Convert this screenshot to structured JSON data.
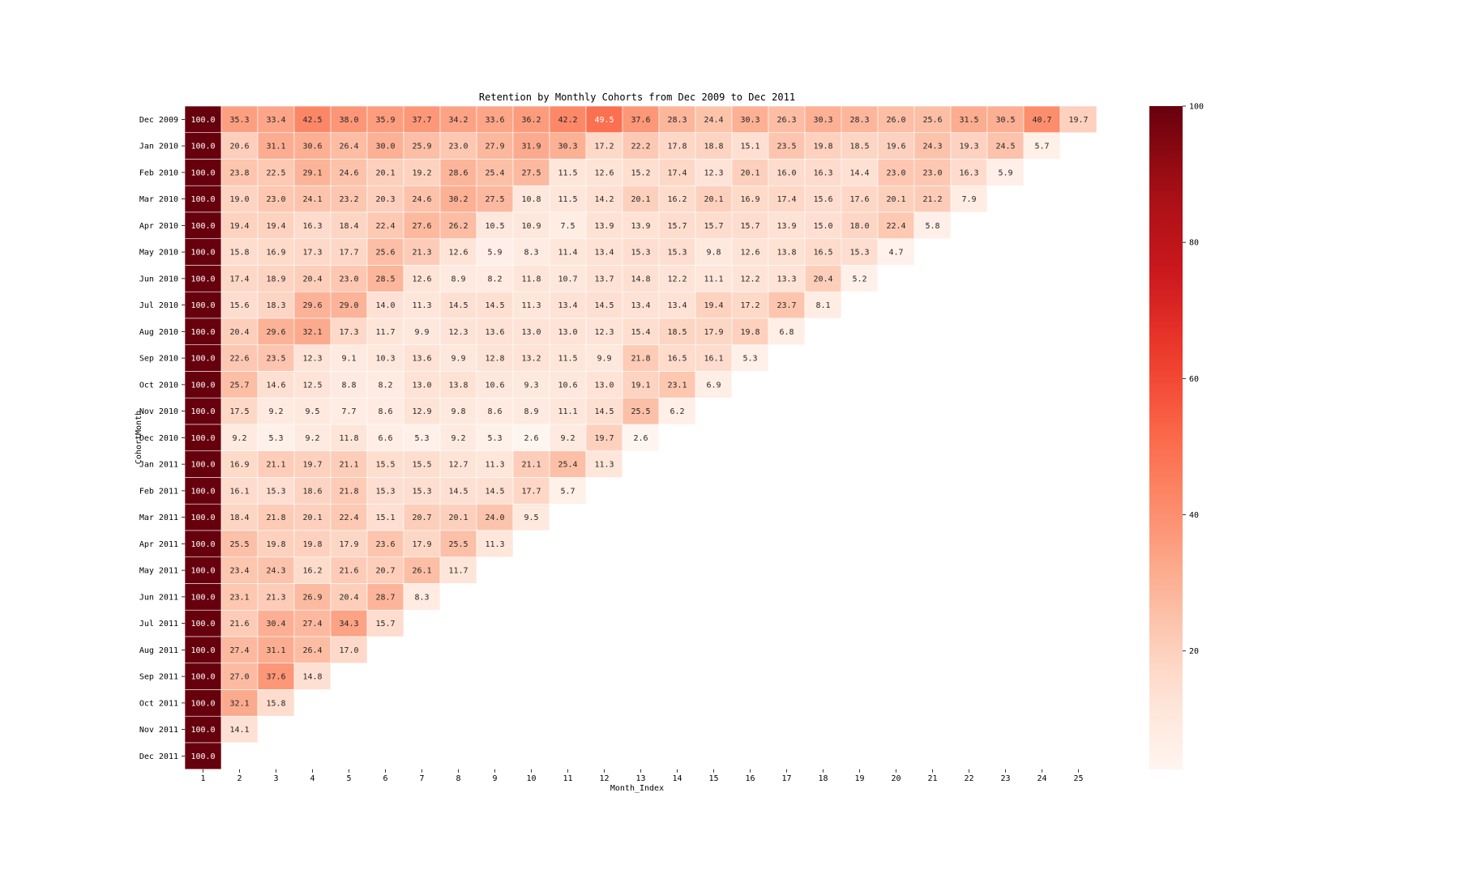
{
  "chart_data": {
    "type": "heatmap",
    "title": "Retention by Monthly Cohorts from Dec 2009 to Dec 2011",
    "xlabel": "Month_Index",
    "ylabel": "CohortMonth",
    "x": [
      1,
      2,
      3,
      4,
      5,
      6,
      7,
      8,
      9,
      10,
      11,
      12,
      13,
      14,
      15,
      16,
      17,
      18,
      19,
      20,
      21,
      22,
      23,
      24,
      25
    ],
    "y": [
      "Dec 2009",
      "Jan 2010",
      "Feb 2010",
      "Mar 2010",
      "Apr 2010",
      "May 2010",
      "Jun 2010",
      "Jul 2010",
      "Aug 2010",
      "Sep 2010",
      "Oct 2010",
      "Nov 2010",
      "Dec 2010",
      "Jan 2011",
      "Feb 2011",
      "Mar 2011",
      "Apr 2011",
      "May 2011",
      "Jun 2011",
      "Jul 2011",
      "Aug 2011",
      "Sep 2011",
      "Oct 2011",
      "Nov 2011",
      "Dec 2011"
    ],
    "values": [
      [
        100.0,
        35.3,
        33.4,
        42.5,
        38.0,
        35.9,
        37.7,
        34.2,
        33.6,
        36.2,
        42.2,
        49.5,
        37.6,
        28.3,
        24.4,
        30.3,
        26.3,
        30.3,
        28.3,
        26.0,
        25.6,
        31.5,
        30.5,
        40.7,
        19.7
      ],
      [
        100.0,
        20.6,
        31.1,
        30.6,
        26.4,
        30.0,
        25.9,
        23.0,
        27.9,
        31.9,
        30.3,
        17.2,
        22.2,
        17.8,
        18.8,
        15.1,
        23.5,
        19.8,
        18.5,
        19.6,
        24.3,
        19.3,
        24.5,
        5.7
      ],
      [
        100.0,
        23.8,
        22.5,
        29.1,
        24.6,
        20.1,
        19.2,
        28.6,
        25.4,
        27.5,
        11.5,
        12.6,
        15.2,
        17.4,
        12.3,
        20.1,
        16.0,
        16.3,
        14.4,
        23.0,
        23.0,
        16.3,
        5.9
      ],
      [
        100.0,
        19.0,
        23.0,
        24.1,
        23.2,
        20.3,
        24.6,
        30.2,
        27.5,
        10.8,
        11.5,
        14.2,
        20.1,
        16.2,
        20.1,
        16.9,
        17.4,
        15.6,
        17.6,
        20.1,
        21.2,
        7.9
      ],
      [
        100.0,
        19.4,
        19.4,
        16.3,
        18.4,
        22.4,
        27.6,
        26.2,
        10.5,
        10.9,
        7.5,
        13.9,
        13.9,
        15.7,
        15.7,
        15.7,
        13.9,
        15.0,
        18.0,
        22.4,
        5.8
      ],
      [
        100.0,
        15.8,
        16.9,
        17.3,
        17.7,
        25.6,
        21.3,
        12.6,
        5.9,
        8.3,
        11.4,
        13.4,
        15.3,
        15.3,
        9.8,
        12.6,
        13.8,
        16.5,
        15.3,
        4.7
      ],
      [
        100.0,
        17.4,
        18.9,
        20.4,
        23.0,
        28.5,
        12.6,
        8.9,
        8.2,
        11.8,
        10.7,
        13.7,
        14.8,
        12.2,
        11.1,
        12.2,
        13.3,
        20.4,
        5.2
      ],
      [
        100.0,
        15.6,
        18.3,
        29.6,
        29.0,
        14.0,
        11.3,
        14.5,
        14.5,
        11.3,
        13.4,
        14.5,
        13.4,
        13.4,
        19.4,
        17.2,
        23.7,
        8.1
      ],
      [
        100.0,
        20.4,
        29.6,
        32.1,
        17.3,
        11.7,
        9.9,
        12.3,
        13.6,
        13.0,
        13.0,
        12.3,
        15.4,
        18.5,
        17.9,
        19.8,
        6.8
      ],
      [
        100.0,
        22.6,
        23.5,
        12.3,
        9.1,
        10.3,
        13.6,
        9.9,
        12.8,
        13.2,
        11.5,
        9.9,
        21.8,
        16.5,
        16.1,
        5.3
      ],
      [
        100.0,
        25.7,
        14.6,
        12.5,
        8.8,
        8.2,
        13.0,
        13.8,
        10.6,
        9.3,
        10.6,
        13.0,
        19.1,
        23.1,
        6.9
      ],
      [
        100.0,
        17.5,
        9.2,
        9.5,
        7.7,
        8.6,
        12.9,
        9.8,
        8.6,
        8.9,
        11.1,
        14.5,
        25.5,
        6.2
      ],
      [
        100.0,
        9.2,
        5.3,
        9.2,
        11.8,
        6.6,
        5.3,
        9.2,
        5.3,
        2.6,
        9.2,
        19.7,
        2.6
      ],
      [
        100.0,
        16.9,
        21.1,
        19.7,
        21.1,
        15.5,
        15.5,
        12.7,
        11.3,
        21.1,
        25.4,
        11.3
      ],
      [
        100.0,
        16.1,
        15.3,
        18.6,
        21.8,
        15.3,
        15.3,
        14.5,
        14.5,
        17.7,
        5.7
      ],
      [
        100.0,
        18.4,
        21.8,
        20.1,
        22.4,
        15.1,
        20.7,
        20.1,
        24.0,
        9.5
      ],
      [
        100.0,
        25.5,
        19.8,
        19.8,
        17.9,
        23.6,
        17.9,
        25.5,
        11.3
      ],
      [
        100.0,
        23.4,
        24.3,
        16.2,
        21.6,
        20.7,
        26.1,
        11.7
      ],
      [
        100.0,
        23.1,
        21.3,
        26.9,
        20.4,
        28.7,
        8.3
      ],
      [
        100.0,
        21.6,
        30.4,
        27.4,
        34.3,
        15.7
      ],
      [
        100.0,
        27.4,
        31.1,
        26.4,
        17.0
      ],
      [
        100.0,
        27.0,
        37.6,
        14.8
      ],
      [
        100.0,
        32.1,
        15.8
      ],
      [
        100.0,
        14.1
      ],
      [
        100.0
      ]
    ],
    "colormap": "Reds",
    "vmin": 2.6,
    "vmax": 100,
    "colorbar_ticks": [
      20,
      40,
      60,
      80,
      100
    ],
    "annotation_format": "0.1f",
    "grid": false,
    "legend": "colorbar right"
  }
}
